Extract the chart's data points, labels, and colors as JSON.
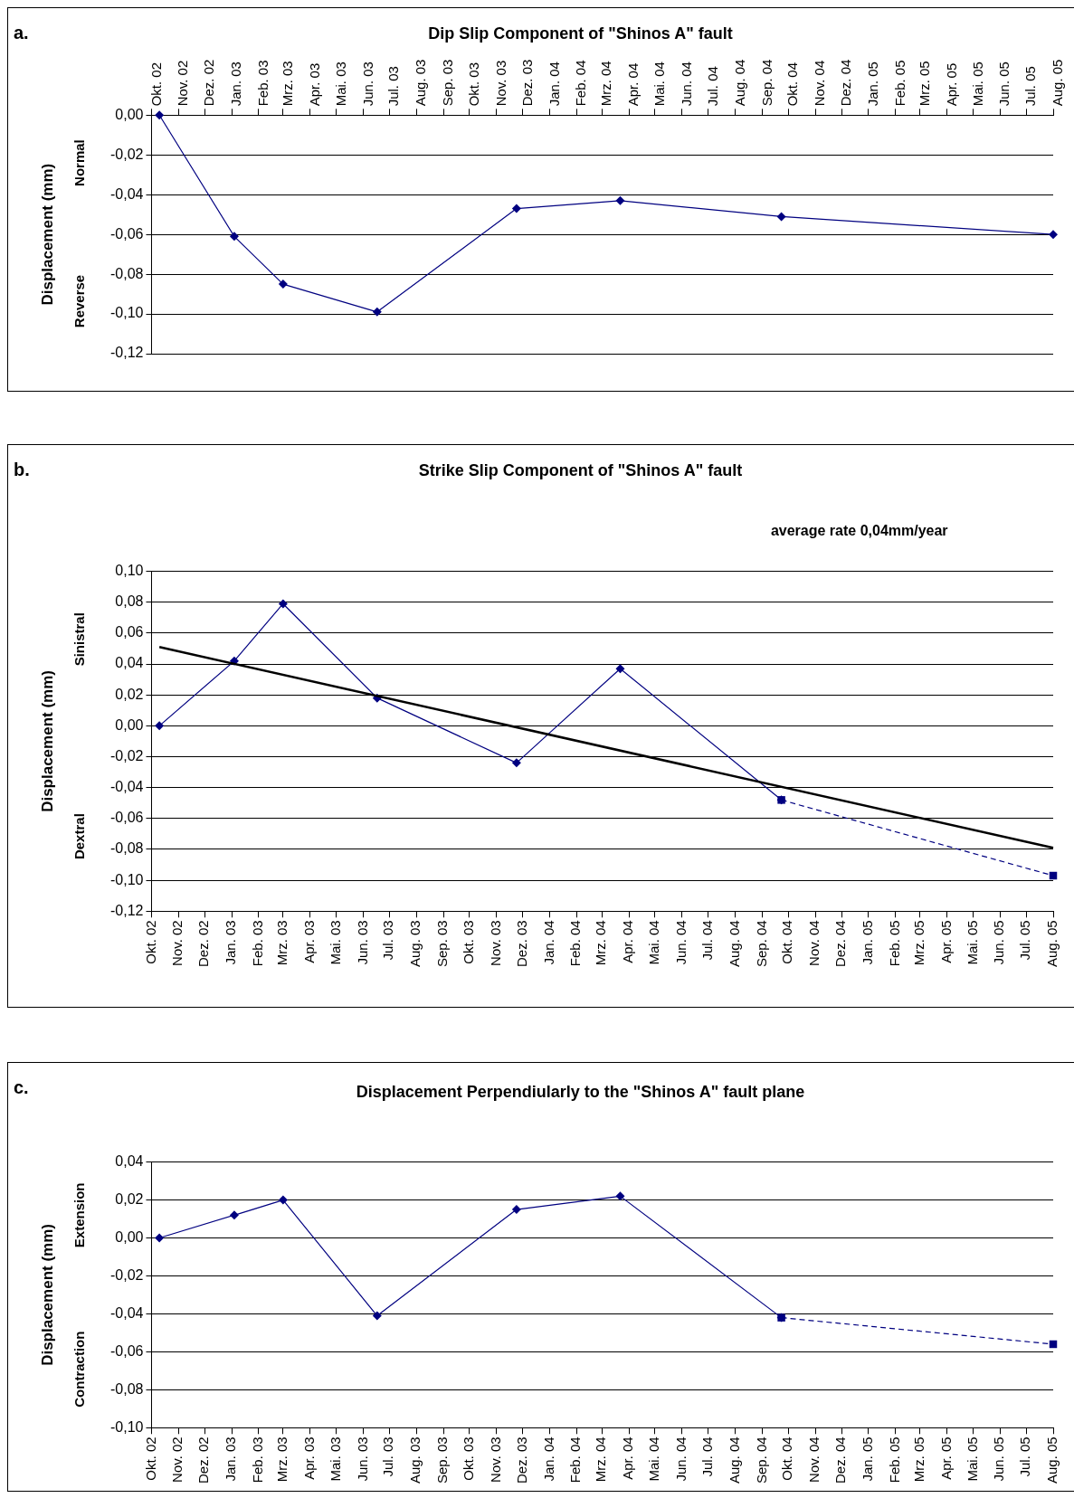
{
  "chart_data": [
    {
      "type": "line",
      "title": "Dip Slip Component of \"Shinos A\" fault",
      "ylabel": "Displacement (mm)",
      "annotations": [
        "a.",
        "Normal",
        "Reverse"
      ],
      "legend": false,
      "grid": "y",
      "xlim": [
        "2002-10-01",
        "2005-08-01"
      ],
      "xticks": [
        {
          "value": "2002-10",
          "label": "Okt. 02"
        },
        {
          "value": "2002-11",
          "label": "Nov. 02"
        },
        {
          "value": "2002-12",
          "label": "Dez. 02"
        },
        {
          "value": "2003-01",
          "label": "Jan. 03"
        },
        {
          "value": "2003-02",
          "label": "Feb. 03"
        },
        {
          "value": "2003-03",
          "label": "Mrz. 03"
        },
        {
          "value": "2003-04",
          "label": "Apr. 03"
        },
        {
          "value": "2003-05",
          "label": "Mai. 03"
        },
        {
          "value": "2003-06",
          "label": "Jun. 03"
        },
        {
          "value": "2003-07",
          "label": "Jul. 03"
        },
        {
          "value": "2003-08",
          "label": "Aug. 03"
        },
        {
          "value": "2003-09",
          "label": "Sep. 03"
        },
        {
          "value": "2003-10",
          "label": "Okt. 03"
        },
        {
          "value": "2003-11",
          "label": "Nov. 03"
        },
        {
          "value": "2003-12",
          "label": "Dez. 03"
        },
        {
          "value": "2004-01",
          "label": "Jan. 04"
        },
        {
          "value": "2004-02",
          "label": "Feb. 04"
        },
        {
          "value": "2004-03",
          "label": "Mrz. 04"
        },
        {
          "value": "2004-04",
          "label": "Apr. 04"
        },
        {
          "value": "2004-05",
          "label": "Mai. 04"
        },
        {
          "value": "2004-06",
          "label": "Jun. 04"
        },
        {
          "value": "2004-07",
          "label": "Jul. 04"
        },
        {
          "value": "2004-08",
          "label": "Aug. 04"
        },
        {
          "value": "2004-09",
          "label": "Sep. 04"
        },
        {
          "value": "2004-10",
          "label": "Okt. 04"
        },
        {
          "value": "2004-11",
          "label": "Nov. 04"
        },
        {
          "value": "2004-12",
          "label": "Dez. 04"
        },
        {
          "value": "2005-01",
          "label": "Jan. 05"
        },
        {
          "value": "2005-02",
          "label": "Feb. 05"
        },
        {
          "value": "2005-03",
          "label": "Mrz. 05"
        },
        {
          "value": "2005-04",
          "label": "Apr. 05"
        },
        {
          "value": "2005-05",
          "label": "Mai. 05"
        },
        {
          "value": "2005-06",
          "label": "Jun. 05"
        },
        {
          "value": "2005-07",
          "label": "Jul. 05"
        },
        {
          "value": "2005-08",
          "label": "Aug. 05"
        }
      ],
      "ylim": [
        -0.12,
        0
      ],
      "yticks": [
        {
          "value": 0,
          "label": "0,00"
        },
        {
          "value": -0.02,
          "label": "-0,02"
        },
        {
          "value": -0.04,
          "label": "-0,04"
        },
        {
          "value": -0.06,
          "label": "-0,06"
        },
        {
          "value": -0.08,
          "label": "-0,08"
        },
        {
          "value": -0.1,
          "label": "-0,10"
        },
        {
          "value": -0.12,
          "label": "-0,12"
        }
      ],
      "series": [
        {
          "type": "line",
          "color": "#000080",
          "marker": "diamond",
          "line_style": "solid",
          "x": [
            "2002-10-10",
            "2003-01-04",
            "2003-03-01",
            "2003-06-17",
            "2003-11-24",
            "2004-03-22",
            "2004-09-23",
            "2005-08-01"
          ],
          "values": [
            0,
            -0.061,
            -0.085,
            -0.099,
            -0.047,
            -0.043,
            -0.051,
            -0.06
          ]
        }
      ]
    },
    {
      "type": "line",
      "title": "Strike Slip Component of \"Shinos A\" fault",
      "ylabel": "Displacement (mm)",
      "annotations": [
        "b.",
        "Sinistral",
        "Dextral",
        "average rate 0,04mm/year"
      ],
      "legend": false,
      "grid": "y",
      "xlim": [
        "2002-10-01",
        "2005-08-01"
      ],
      "xticks": [
        {
          "value": "2002-10",
          "label": "Okt. 02"
        },
        {
          "value": "2002-11",
          "label": "Nov. 02"
        },
        {
          "value": "2002-12",
          "label": "Dez. 02"
        },
        {
          "value": "2003-01",
          "label": "Jan. 03"
        },
        {
          "value": "2003-02",
          "label": "Feb. 03"
        },
        {
          "value": "2003-03",
          "label": "Mrz. 03"
        },
        {
          "value": "2003-04",
          "label": "Apr. 03"
        },
        {
          "value": "2003-05",
          "label": "Mai. 03"
        },
        {
          "value": "2003-06",
          "label": "Jun. 03"
        },
        {
          "value": "2003-07",
          "label": "Jul. 03"
        },
        {
          "value": "2003-08",
          "label": "Aug. 03"
        },
        {
          "value": "2003-09",
          "label": "Sep. 03"
        },
        {
          "value": "2003-10",
          "label": "Okt. 03"
        },
        {
          "value": "2003-11",
          "label": "Nov. 03"
        },
        {
          "value": "2003-12",
          "label": "Dez. 03"
        },
        {
          "value": "2004-01",
          "label": "Jan. 04"
        },
        {
          "value": "2004-02",
          "label": "Feb. 04"
        },
        {
          "value": "2004-03",
          "label": "Mrz. 04"
        },
        {
          "value": "2004-04",
          "label": "Apr. 04"
        },
        {
          "value": "2004-05",
          "label": "Mai. 04"
        },
        {
          "value": "2004-06",
          "label": "Jun. 04"
        },
        {
          "value": "2004-07",
          "label": "Jul. 04"
        },
        {
          "value": "2004-08",
          "label": "Aug. 04"
        },
        {
          "value": "2004-09",
          "label": "Sep. 04"
        },
        {
          "value": "2004-10",
          "label": "Okt. 04"
        },
        {
          "value": "2004-11",
          "label": "Nov. 04"
        },
        {
          "value": "2004-12",
          "label": "Dez. 04"
        },
        {
          "value": "2005-01",
          "label": "Jan. 05"
        },
        {
          "value": "2005-02",
          "label": "Feb. 05"
        },
        {
          "value": "2005-03",
          "label": "Mrz. 05"
        },
        {
          "value": "2005-04",
          "label": "Apr. 05"
        },
        {
          "value": "2005-05",
          "label": "Mai. 05"
        },
        {
          "value": "2005-06",
          "label": "Jun. 05"
        },
        {
          "value": "2005-07",
          "label": "Jul. 05"
        },
        {
          "value": "2005-08",
          "label": "Aug. 05"
        }
      ],
      "ylim": [
        -0.12,
        0.1
      ],
      "yticks": [
        {
          "value": 0.1,
          "label": "0,10"
        },
        {
          "value": 0.08,
          "label": "0,08"
        },
        {
          "value": 0.06,
          "label": "0,06"
        },
        {
          "value": 0.04,
          "label": "0,04"
        },
        {
          "value": 0.02,
          "label": "0,02"
        },
        {
          "value": 0,
          "label": "0,00"
        },
        {
          "value": -0.02,
          "label": "-0,02"
        },
        {
          "value": -0.04,
          "label": "-0,04"
        },
        {
          "value": -0.06,
          "label": "-0,06"
        },
        {
          "value": -0.08,
          "label": "-0,08"
        },
        {
          "value": -0.1,
          "label": "-0,10"
        },
        {
          "value": -0.12,
          "label": "-0,12"
        }
      ],
      "series": [
        {
          "type": "line",
          "color": "#000000",
          "marker": "none",
          "line_style": "solid",
          "x": [
            "2002-10-10",
            "2005-08-01"
          ],
          "values": [
            0.051,
            -0.079
          ]
        },
        {
          "type": "line",
          "color": "#000080",
          "marker": "diamond",
          "line_style": "solid",
          "x": [
            "2002-10-10",
            "2003-01-04",
            "2003-03-01",
            "2003-06-17",
            "2003-11-24",
            "2004-03-22",
            "2004-09-23"
          ],
          "values": [
            0,
            0.042,
            0.079,
            0.018,
            -0.024,
            0.037,
            -0.048
          ]
        },
        {
          "type": "line",
          "color": "#000080",
          "marker": "square",
          "line_style": "dashed",
          "x": [
            "2004-09-23",
            "2005-08-01"
          ],
          "values": [
            -0.048,
            -0.097
          ]
        }
      ]
    },
    {
      "type": "line",
      "title": "Displacement Perpendiularly to the \"Shinos A\" fault plane",
      "ylabel": "Displacement (mm)",
      "annotations": [
        "c.",
        "Extension",
        "Contraction"
      ],
      "legend": false,
      "grid": "y",
      "xlim": [
        "2002-10-01",
        "2005-08-01"
      ],
      "xticks": [
        {
          "value": "2002-10",
          "label": "Okt. 02"
        },
        {
          "value": "2002-11",
          "label": "Nov. 02"
        },
        {
          "value": "2002-12",
          "label": "Dez. 02"
        },
        {
          "value": "2003-01",
          "label": "Jan. 03"
        },
        {
          "value": "2003-02",
          "label": "Feb. 03"
        },
        {
          "value": "2003-03",
          "label": "Mrz. 03"
        },
        {
          "value": "2003-04",
          "label": "Apr. 03"
        },
        {
          "value": "2003-05",
          "label": "Mai. 03"
        },
        {
          "value": "2003-06",
          "label": "Jun. 03"
        },
        {
          "value": "2003-07",
          "label": "Jul. 03"
        },
        {
          "value": "2003-08",
          "label": "Aug. 03"
        },
        {
          "value": "2003-09",
          "label": "Sep. 03"
        },
        {
          "value": "2003-10",
          "label": "Okt. 03"
        },
        {
          "value": "2003-11",
          "label": "Nov. 03"
        },
        {
          "value": "2003-12",
          "label": "Dez. 03"
        },
        {
          "value": "2004-01",
          "label": "Jan. 04"
        },
        {
          "value": "2004-02",
          "label": "Feb. 04"
        },
        {
          "value": "2004-03",
          "label": "Mrz. 04"
        },
        {
          "value": "2004-04",
          "label": "Apr. 04"
        },
        {
          "value": "2004-05",
          "label": "Mai. 04"
        },
        {
          "value": "2004-06",
          "label": "Jun. 04"
        },
        {
          "value": "2004-07",
          "label": "Jul. 04"
        },
        {
          "value": "2004-08",
          "label": "Aug. 04"
        },
        {
          "value": "2004-09",
          "label": "Sep. 04"
        },
        {
          "value": "2004-10",
          "label": "Okt. 04"
        },
        {
          "value": "2004-11",
          "label": "Nov. 04"
        },
        {
          "value": "2004-12",
          "label": "Dez. 04"
        },
        {
          "value": "2005-01",
          "label": "Jan. 05"
        },
        {
          "value": "2005-02",
          "label": "Feb. 05"
        },
        {
          "value": "2005-03",
          "label": "Mrz. 05"
        },
        {
          "value": "2005-04",
          "label": "Apr. 05"
        },
        {
          "value": "2005-05",
          "label": "Mai. 05"
        },
        {
          "value": "2005-06",
          "label": "Jun. 05"
        },
        {
          "value": "2005-07",
          "label": "Jul. 05"
        },
        {
          "value": "2005-08",
          "label": "Aug. 05"
        }
      ],
      "ylim": [
        -0.1,
        0.04
      ],
      "yticks": [
        {
          "value": 0.04,
          "label": "0,04"
        },
        {
          "value": 0.02,
          "label": "0,02"
        },
        {
          "value": 0,
          "label": "0,00"
        },
        {
          "value": -0.02,
          "label": "-0,02"
        },
        {
          "value": -0.04,
          "label": "-0,04"
        },
        {
          "value": -0.06,
          "label": "-0,06"
        },
        {
          "value": -0.08,
          "label": "-0,08"
        },
        {
          "value": -0.1,
          "label": "-0,10"
        }
      ],
      "series": [
        {
          "type": "line",
          "color": "#000080",
          "marker": "diamond",
          "line_style": "solid",
          "x": [
            "2002-10-10",
            "2003-01-04",
            "2003-03-01",
            "2003-06-17",
            "2003-11-24",
            "2004-03-22",
            "2004-09-23"
          ],
          "values": [
            0,
            0.012,
            0.02,
            -0.041,
            0.015,
            0.022,
            -0.042
          ]
        },
        {
          "type": "line",
          "color": "#000080",
          "marker": "square",
          "line_style": "dashed",
          "x": [
            "2004-09-23",
            "2005-08-01"
          ],
          "values": [
            -0.042,
            -0.056
          ]
        }
      ]
    }
  ]
}
